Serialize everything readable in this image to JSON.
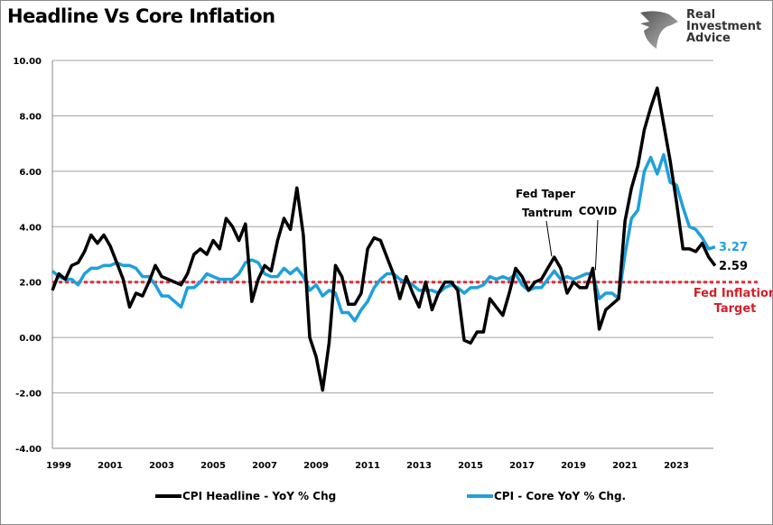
{
  "chart_data": {
    "type": "line",
    "title": "Headline Vs Core Inflation",
    "xlabel": "",
    "ylabel": "",
    "xlim": [
      1999,
      2024.75
    ],
    "ylim": [
      -4,
      10
    ],
    "y_ticks": [
      "10.00",
      "8.00",
      "6.00",
      "4.00",
      "2.00",
      "0.00",
      "-2.00",
      "-4.00"
    ],
    "y_tick_values": [
      10,
      8,
      6,
      4,
      2,
      0,
      -2,
      -4
    ],
    "x_ticks": [
      "1999",
      "2001",
      "2003",
      "2005",
      "2007",
      "2009",
      "2011",
      "2013",
      "2015",
      "2017",
      "2019",
      "2021",
      "2023"
    ],
    "grid": true,
    "legend_position": "bottom",
    "x_start": 1999,
    "x_step": 0.25,
    "series": [
      {
        "name": "CPI Headline - YoY % Chg",
        "color": "#000000",
        "last_label": "2.59",
        "values": [
          1.7,
          2.3,
          2.1,
          2.6,
          2.7,
          3.1,
          3.7,
          3.4,
          3.7,
          3.3,
          2.7,
          2.1,
          1.1,
          1.6,
          1.5,
          2.0,
          2.6,
          2.2,
          2.1,
          2.0,
          1.9,
          2.3,
          3.0,
          3.2,
          3.0,
          3.5,
          3.2,
          4.3,
          4.0,
          3.5,
          4.1,
          1.3,
          2.1,
          2.6,
          2.4,
          3.5,
          4.3,
          3.9,
          5.4,
          3.7,
          0.0,
          -0.7,
          -1.9,
          -0.2,
          2.6,
          2.2,
          1.2,
          1.2,
          1.6,
          3.2,
          3.6,
          3.5,
          2.9,
          2.3,
          1.4,
          2.2,
          1.6,
          1.1,
          2.0,
          1.0,
          1.6,
          2.0,
          2.0,
          1.7,
          -0.1,
          -0.2,
          0.2,
          0.2,
          1.4,
          1.1,
          0.8,
          1.6,
          2.5,
          2.2,
          1.7,
          2.0,
          2.1,
          2.5,
          2.9,
          2.5,
          1.6,
          2.0,
          1.8,
          1.8,
          2.5,
          0.3,
          1.0,
          1.2,
          1.4,
          4.2,
          5.4,
          6.2,
          7.5,
          8.3,
          9.0,
          7.7,
          6.4,
          4.9,
          3.2,
          3.2,
          3.1,
          3.4,
          2.9,
          2.59
        ]
      },
      {
        "name": "CPI - Core YoY % Chg.",
        "color": "#1ea0dc",
        "last_label": "3.27",
        "values": [
          2.4,
          2.2,
          2.1,
          2.1,
          1.9,
          2.3,
          2.5,
          2.5,
          2.6,
          2.6,
          2.7,
          2.6,
          2.6,
          2.5,
          2.2,
          2.2,
          1.9,
          1.5,
          1.5,
          1.3,
          1.1,
          1.8,
          1.8,
          2.0,
          2.3,
          2.2,
          2.1,
          2.1,
          2.1,
          2.3,
          2.7,
          2.8,
          2.7,
          2.3,
          2.2,
          2.2,
          2.5,
          2.3,
          2.5,
          2.2,
          1.7,
          1.9,
          1.5,
          1.7,
          1.6,
          0.9,
          0.9,
          0.6,
          1.0,
          1.3,
          1.8,
          2.1,
          2.3,
          2.3,
          2.1,
          2.0,
          1.9,
          1.7,
          1.7,
          1.7,
          1.6,
          1.8,
          1.9,
          1.8,
          1.6,
          1.8,
          1.8,
          1.9,
          2.2,
          2.1,
          2.2,
          2.1,
          2.3,
          1.9,
          1.7,
          1.8,
          1.8,
          2.1,
          2.4,
          2.1,
          2.2,
          2.1,
          2.2,
          2.3,
          2.3,
          1.4,
          1.6,
          1.6,
          1.4,
          3.0,
          4.3,
          4.6,
          6.0,
          6.5,
          5.9,
          6.6,
          5.6,
          5.5,
          4.7,
          4.0,
          3.9,
          3.6,
          3.2,
          3.27
        ]
      }
    ],
    "reference_line": {
      "value": 2.0,
      "label_line1": "Fed Inflation",
      "label_line2": "Target",
      "color": "#e0303a"
    },
    "annotations": [
      {
        "line1": "Fed Taper",
        "line2": "Tantrum",
        "x": 2018.4,
        "y": 2.8
      },
      {
        "line1": "COVID",
        "line2": "",
        "x": 2020.1,
        "y": 2.3
      }
    ]
  },
  "logo": {
    "line1": "Real",
    "line2": "Investment",
    "line3": "Advice"
  }
}
